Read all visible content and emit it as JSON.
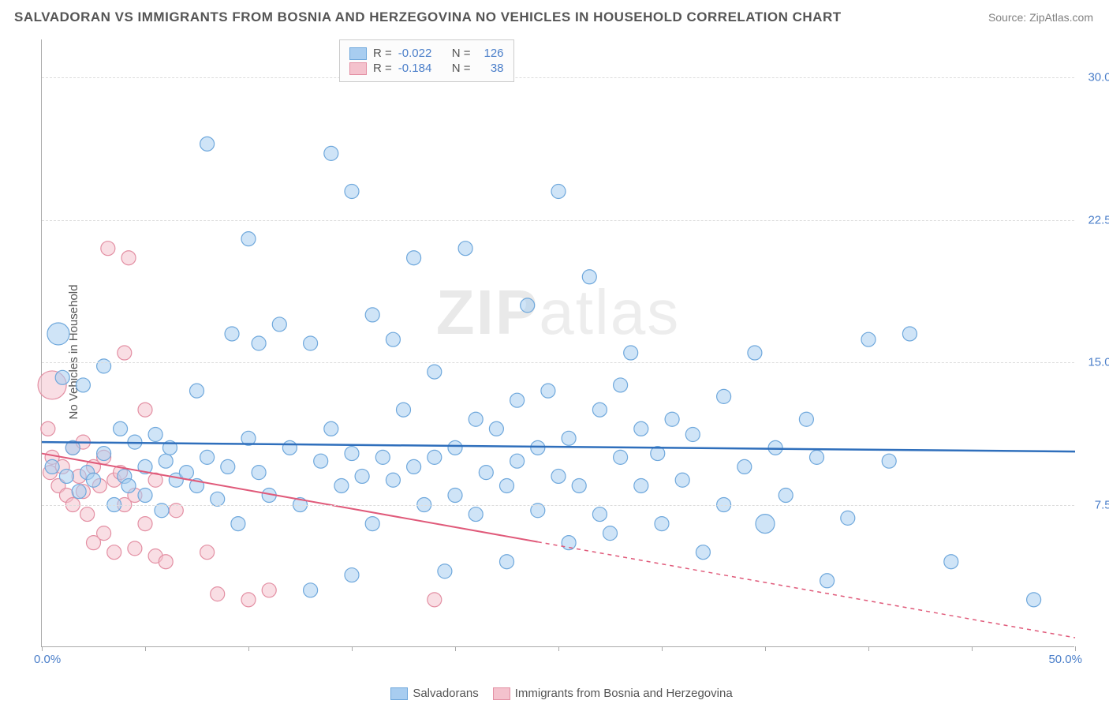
{
  "title": "SALVADORAN VS IMMIGRANTS FROM BOSNIA AND HERZEGOVINA NO VEHICLES IN HOUSEHOLD CORRELATION CHART",
  "source": "Source: ZipAtlas.com",
  "ylabel": "No Vehicles in Household",
  "watermark_bold": "ZIP",
  "watermark_thin": "atlas",
  "xlim": [
    0,
    50
  ],
  "ylim": [
    0,
    32
  ],
  "yticks": [
    7.5,
    15.0,
    22.5,
    30.0
  ],
  "ytick_labels": [
    "7.5%",
    "15.0%",
    "22.5%",
    "30.0%"
  ],
  "xtick_min": "0.0%",
  "xtick_max": "50.0%",
  "xticks": [
    0,
    5,
    10,
    15,
    20,
    25,
    30,
    35,
    40,
    45,
    50
  ],
  "series": [
    {
      "name": "Salvadorans",
      "color_fill": "#a8cdf0",
      "color_stroke": "#6fa8dc",
      "line_color": "#2f6fbc",
      "r_value": "-0.022",
      "n_value": "126",
      "trend_y0": 10.8,
      "trend_y1": 10.3,
      "points": [
        [
          0.5,
          9.5
        ],
        [
          0.8,
          16.5,
          14
        ],
        [
          1,
          14.2
        ],
        [
          1.2,
          9.0
        ],
        [
          1.5,
          10.5
        ],
        [
          1.8,
          8.2
        ],
        [
          2,
          13.8
        ],
        [
          2.2,
          9.2
        ],
        [
          2.5,
          8.8
        ],
        [
          3,
          14.8
        ],
        [
          3,
          10.2
        ],
        [
          3.5,
          7.5
        ],
        [
          3.8,
          11.5
        ],
        [
          4,
          9.0
        ],
        [
          4.2,
          8.5
        ],
        [
          4.5,
          10.8
        ],
        [
          5,
          9.5
        ],
        [
          5,
          8.0
        ],
        [
          5.5,
          11.2
        ],
        [
          5.8,
          7.2
        ],
        [
          6,
          9.8
        ],
        [
          6.2,
          10.5
        ],
        [
          6.5,
          8.8
        ],
        [
          7,
          9.2
        ],
        [
          7.5,
          13.5
        ],
        [
          7.5,
          8.5
        ],
        [
          8,
          26.5
        ],
        [
          8,
          10.0
        ],
        [
          8.5,
          7.8
        ],
        [
          9,
          9.5
        ],
        [
          9.2,
          16.5
        ],
        [
          9.5,
          6.5
        ],
        [
          10,
          21.5
        ],
        [
          10,
          11.0
        ],
        [
          10.5,
          9.2
        ],
        [
          10.5,
          16.0
        ],
        [
          11,
          8.0
        ],
        [
          11.5,
          17.0
        ],
        [
          12,
          10.5
        ],
        [
          12.5,
          7.5
        ],
        [
          13,
          3.0
        ],
        [
          13,
          16.0
        ],
        [
          13.5,
          9.8
        ],
        [
          14,
          26.0
        ],
        [
          14,
          11.5
        ],
        [
          14.5,
          8.5
        ],
        [
          15,
          24.0
        ],
        [
          15,
          10.2
        ],
        [
          15,
          3.8
        ],
        [
          15.5,
          9.0
        ],
        [
          16,
          17.5
        ],
        [
          16,
          6.5
        ],
        [
          16.5,
          10.0
        ],
        [
          17,
          16.2
        ],
        [
          17,
          8.8
        ],
        [
          17.5,
          12.5
        ],
        [
          18,
          20.5
        ],
        [
          18,
          9.5
        ],
        [
          18.5,
          7.5
        ],
        [
          19,
          14.5
        ],
        [
          19,
          10.0
        ],
        [
          19.5,
          4.0
        ],
        [
          20,
          10.5
        ],
        [
          20,
          8.0
        ],
        [
          20.5,
          21.0
        ],
        [
          21,
          12.0
        ],
        [
          21,
          7.0
        ],
        [
          21.5,
          9.2
        ],
        [
          22,
          11.5
        ],
        [
          22.5,
          8.5
        ],
        [
          22.5,
          4.5
        ],
        [
          23,
          13.0
        ],
        [
          23,
          9.8
        ],
        [
          23.5,
          18.0
        ],
        [
          24,
          10.5
        ],
        [
          24,
          7.2
        ],
        [
          24.5,
          13.5
        ],
        [
          25,
          9.0
        ],
        [
          25,
          24.0
        ],
        [
          25.5,
          11.0
        ],
        [
          25.5,
          5.5
        ],
        [
          26,
          8.5
        ],
        [
          26.5,
          19.5
        ],
        [
          27,
          12.5
        ],
        [
          27,
          7.0
        ],
        [
          27.5,
          6.0
        ],
        [
          28,
          10.0
        ],
        [
          28,
          13.8
        ],
        [
          28.5,
          15.5
        ],
        [
          29,
          8.5
        ],
        [
          29,
          11.5
        ],
        [
          29.8,
          10.2
        ],
        [
          30,
          6.5
        ],
        [
          30.5,
          12.0
        ],
        [
          31,
          8.8
        ],
        [
          31.5,
          11.2
        ],
        [
          32,
          5.0
        ],
        [
          33,
          13.2
        ],
        [
          33,
          7.5
        ],
        [
          34,
          9.5
        ],
        [
          34.5,
          15.5
        ],
        [
          35,
          6.5,
          12
        ],
        [
          35.5,
          10.5
        ],
        [
          36,
          8.0
        ],
        [
          37,
          12.0
        ],
        [
          37.5,
          10.0
        ],
        [
          38,
          3.5
        ],
        [
          39,
          6.8
        ],
        [
          40,
          16.2
        ],
        [
          41,
          9.8
        ],
        [
          42,
          16.5
        ],
        [
          44,
          4.5
        ],
        [
          48,
          2.5
        ]
      ]
    },
    {
      "name": "Immigrants from Bosnia and Herzegovina",
      "color_fill": "#f4c2cd",
      "color_stroke": "#e38fa3",
      "line_color": "#e05a7a",
      "r_value": "-0.184",
      "n_value": "38",
      "trend_y0": 10.2,
      "trend_y1": 0.5,
      "trend_solid_end_x": 24,
      "points": [
        [
          0.3,
          11.5
        ],
        [
          0.4,
          9.2
        ],
        [
          0.5,
          10.0
        ],
        [
          0.5,
          13.8,
          18
        ],
        [
          0.8,
          8.5
        ],
        [
          1,
          9.5
        ],
        [
          1.2,
          8.0
        ],
        [
          1.5,
          10.5
        ],
        [
          1.5,
          7.5
        ],
        [
          1.8,
          9.0
        ],
        [
          2,
          8.2
        ],
        [
          2,
          10.8
        ],
        [
          2.2,
          7.0
        ],
        [
          2.5,
          9.5
        ],
        [
          2.5,
          5.5
        ],
        [
          2.8,
          8.5
        ],
        [
          3,
          10.0
        ],
        [
          3,
          6.0
        ],
        [
          3.2,
          21.0
        ],
        [
          3.5,
          8.8
        ],
        [
          3.5,
          5.0
        ],
        [
          3.8,
          9.2
        ],
        [
          4,
          15.5
        ],
        [
          4,
          7.5
        ],
        [
          4.2,
          20.5
        ],
        [
          4.5,
          8.0
        ],
        [
          4.5,
          5.2
        ],
        [
          5,
          12.5
        ],
        [
          5,
          6.5
        ],
        [
          5.5,
          8.8
        ],
        [
          5.5,
          4.8
        ],
        [
          6,
          4.5
        ],
        [
          6.5,
          7.2
        ],
        [
          8,
          5.0
        ],
        [
          8.5,
          2.8
        ],
        [
          10,
          2.5
        ],
        [
          11,
          3.0
        ],
        [
          19,
          2.5
        ]
      ]
    }
  ],
  "legend_top_label_r": "R =",
  "legend_top_label_n": "N =",
  "marker_radius": 9,
  "marker_opacity": 0.55,
  "background": "#ffffff",
  "grid_color": "#dddddd",
  "text_color": "#555555",
  "tick_color": "#4a7ec9"
}
